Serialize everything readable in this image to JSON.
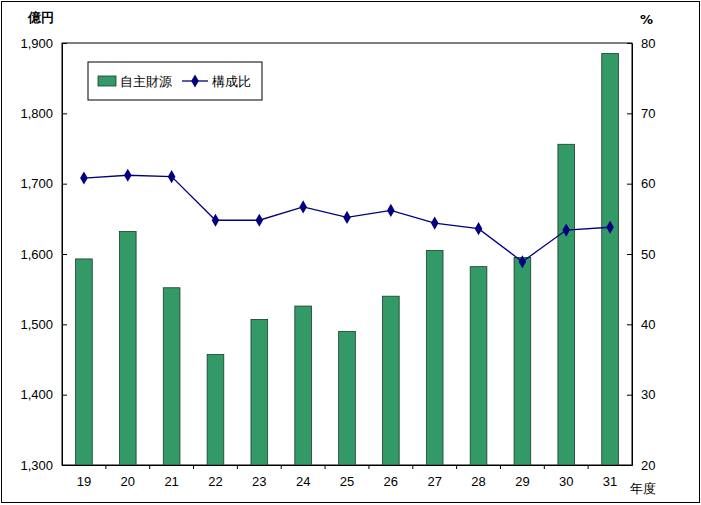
{
  "chart_data": {
    "type": "bar",
    "categories": [
      "19",
      "20",
      "21",
      "22",
      "23",
      "24",
      "25",
      "26",
      "27",
      "28",
      "29",
      "30",
      "31"
    ],
    "series": [
      {
        "name": "自主財源",
        "type": "bar",
        "color": "#339966",
        "values": [
          1593,
          1632,
          1552,
          1457,
          1507,
          1526,
          1490,
          1540,
          1605,
          1582,
          1595,
          1756,
          1885
        ]
      },
      {
        "name": "構成比",
        "type": "line",
        "axis": "y2",
        "color": "#000080",
        "marker": "diamond",
        "line_style": "solid",
        "values": [
          60.8,
          61.2,
          61.0,
          54.8,
          54.8,
          56.7,
          55.2,
          56.2,
          54.4,
          53.6,
          48.9,
          53.4,
          53.8
        ]
      }
    ],
    "y_label": "億円",
    "y2_label": "%",
    "x_label": "年度",
    "ylim": [
      1300,
      1900
    ],
    "yticks": [
      {
        "value": 1300,
        "label": "1,300"
      },
      {
        "value": 1400,
        "label": "1,400"
      },
      {
        "value": 1500,
        "label": "1,500"
      },
      {
        "value": 1600,
        "label": "1,600"
      },
      {
        "value": 1700,
        "label": "1,700"
      },
      {
        "value": 1800,
        "label": "1,800"
      },
      {
        "value": 1900,
        "label": "1,900"
      }
    ],
    "y2lim": [
      20,
      80
    ],
    "y2ticks": [
      20,
      30,
      40,
      50,
      60,
      70,
      80
    ],
    "grid": false,
    "legend": "upper left"
  }
}
